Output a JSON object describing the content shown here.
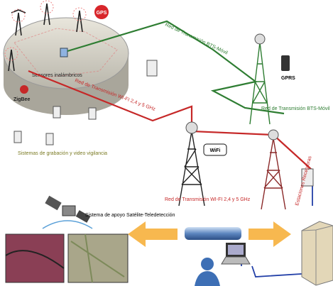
{
  "labels": {
    "bts_top": "Red de Transmisión BTS-Móvil",
    "bts_right": "Red de Transmisión BTS-Móvil",
    "sensors": "Sensores inalámbricos",
    "zigbee": "ZigBee",
    "gps": "GPS",
    "wifi_line": "Red de Transmisión WI-FI 2,4 y 5 GHz",
    "gprs": "GPRS",
    "video": "Sistemas de grabación y video vigilancia",
    "wifi_logo": "WiFi",
    "wifi_bottom": "Red de Transmisión WI-FI 2,4 y 5 GHz",
    "stations": "Estaciones Receptoras",
    "satellite": "Sistema de apoyo Satélite-Teledetección"
  }
}
